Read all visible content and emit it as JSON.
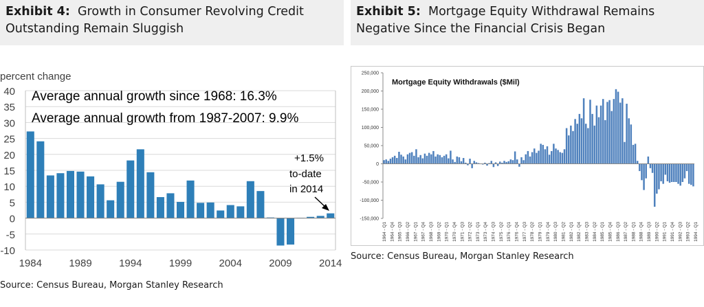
{
  "exhibit4": {
    "label": "Exhibit 4:",
    "title": "Growth in Consumer Revolving Credit Outstanding Remain Sluggish",
    "source": "Source: Census Bureau, Morgan Stanley Research"
  },
  "exhibit5": {
    "label": "Exhibit 5:",
    "title": "Mortgage Equity Withdrawal Remains Negative Since the Financial Crisis Began",
    "source": "Source: Census Bureau, Morgan Stanley Research"
  },
  "chart_data": [
    {
      "type": "bar",
      "ylabel": "percent change",
      "annotations": [
        "Average annual growth since 1968: 16.3%",
        "Average annual growth from 1987-2007: 9.9%",
        "+1.5%",
        "to-date",
        "in 2014"
      ],
      "ylim": [
        -10,
        40
      ],
      "yticks": [
        40,
        35,
        30,
        25,
        20,
        15,
        10,
        5,
        0,
        -5,
        -10
      ],
      "xticks": [
        "1984",
        "1989",
        "1994",
        "1999",
        "2004",
        "2009",
        "2014"
      ],
      "categories": [
        "1984",
        "1985",
        "1986",
        "1987",
        "1988",
        "1989",
        "1990",
        "1991",
        "1992",
        "1993",
        "1994",
        "1995",
        "1996",
        "1997",
        "1998",
        "1999",
        "2000",
        "2001",
        "2002",
        "2003",
        "2004",
        "2005",
        "2006",
        "2007",
        "2008",
        "2009",
        "2010",
        "2011",
        "2012",
        "2013",
        "2014"
      ],
      "values": [
        27.2,
        24.1,
        13.4,
        14.1,
        14.8,
        14.6,
        13.1,
        10.6,
        5.6,
        11.4,
        18.1,
        21.6,
        14.4,
        6.6,
        7.8,
        5.1,
        11.8,
        4.8,
        4.9,
        2.4,
        4.1,
        3.7,
        11.6,
        8.5,
        0.2,
        -8.6,
        -8.3,
        0.1,
        0.4,
        0.7,
        1.5
      ],
      "color": "#2e7fb8",
      "grid": true
    },
    {
      "type": "bar",
      "title": "Mortgage Equity Withdrawals ($Mil)",
      "ylim": [
        -150000,
        250000
      ],
      "yticks": [
        "250,000",
        "200,000",
        "150,000",
        "100,000",
        "50,000",
        "0",
        "-50,000",
        "-100,000",
        "-150,000"
      ],
      "xlabels": [
        "1964 - Q1",
        "1964 - Q4",
        "1965 - Q3",
        "1966 - Q2",
        "1967 - Q1",
        "1967 - Q4",
        "1968 - Q3",
        "1969 - Q2",
        "1970 - Q1",
        "1970 - Q4",
        "1971 - Q3",
        "1972 - Q2",
        "1973 - Q1",
        "1973 - Q4",
        "1974 - Q3",
        "1975 - Q2",
        "1976 - Q1",
        "1976 - Q4",
        "1977 - Q3",
        "1978 - Q2",
        "1979 - Q1",
        "1979 - Q4",
        "1980 - Q3",
        "1981 - Q2",
        "1982 - Q1",
        "1982 - Q4",
        "1983 - Q3",
        "1984 - Q2",
        "1985 - Q1",
        "1985 - Q4",
        "1986 - Q3",
        "1987 - Q2",
        "1988 - Q1",
        "1988 - Q4",
        "1989 - Q3",
        "1990 - Q2",
        "1991 - Q1",
        "1991 - Q4",
        "1992 - Q3",
        "1993 - Q2",
        "1994 - Q1"
      ],
      "values": [
        10000,
        12000,
        8000,
        14000,
        18000,
        22000,
        16000,
        33000,
        25000,
        20000,
        12000,
        26000,
        30000,
        32000,
        22000,
        40000,
        18000,
        24000,
        15000,
        28000,
        22000,
        30000,
        26000,
        35000,
        20000,
        26000,
        24000,
        18000,
        22000,
        26000,
        15000,
        36000,
        12000,
        5000,
        20000,
        18000,
        7000,
        16000,
        3000,
        -4000,
        14000,
        -12000,
        8000,
        4000,
        2000,
        0,
        -2000,
        3000,
        -5000,
        2000,
        8000,
        -9000,
        4000,
        -6000,
        6000,
        3000,
        8000,
        5000,
        7000,
        12000,
        10000,
        34000,
        12000,
        -8000,
        18000,
        10000,
        26000,
        35000,
        20000,
        32000,
        42000,
        30000,
        36000,
        55000,
        52000,
        40000,
        48000,
        25000,
        35000,
        55000,
        42000,
        38000,
        32000,
        30000,
        40000,
        98000,
        78000,
        105000,
        90000,
        123000,
        110000,
        137000,
        125000,
        180000,
        110000,
        98000,
        176000,
        137000,
        105000,
        160000,
        128000,
        160000,
        178000,
        120000,
        170000,
        175000,
        145000,
        178000,
        205000,
        198000,
        168000,
        180000,
        60000,
        165000,
        125000,
        108000,
        52000,
        55000,
        8000,
        -20000,
        -45000,
        -72000,
        -40000,
        20000,
        -12000,
        -25000,
        -118000,
        -82000,
        -70000,
        -48000,
        -55000,
        -30000,
        -48000,
        -52000,
        -50000,
        -50000,
        -50000,
        -55000,
        -60000,
        -50000,
        -40000,
        -20000,
        -55000,
        -58000,
        -62000
      ],
      "color": "#4f81bd",
      "grid": false
    }
  ]
}
